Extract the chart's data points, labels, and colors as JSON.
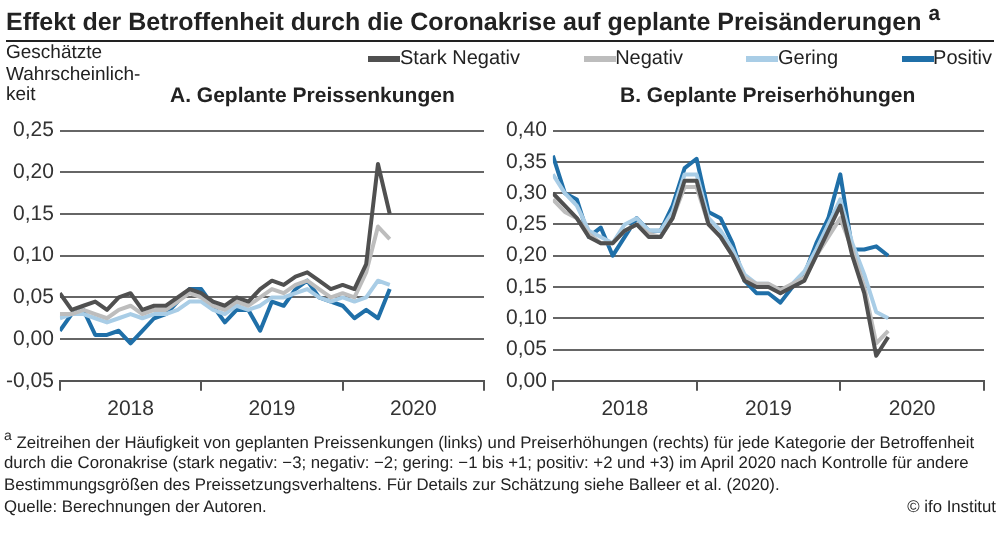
{
  "chart_data": [
    {
      "type": "line",
      "title": "Effekt der Betroffenheit durch die Coronakrise auf geplante Preisänderungen $^{a}$",
      "subtitle": "A. Geplante Preissenkungen",
      "ylabel": "Geschätzte Wahrscheinlich-keit",
      "annotations": [
        "$^{a}$ Zeitreihen der Häufigkeit von geplanten Preissenkungen (links) und Preiserhöhungen (rechts) für jede Kategorie der Betroffenheit durch die Coronakrise (stark negativ: −3; negativ: −2; gering: −1 bis +1; positiv: +2 und +3) im April 2020 nach Kontrolle für andere Bestimmungsgrößen des Preissetzungsverhaltens. Für Details zur Schätzung siehe Balleer et al. (2020).",
        "Quelle: Berechnungen der Autoren.",
        "© ifo Institut"
      ],
      "x": [
        "2018-01",
        "2018-02",
        "2018-03",
        "2018-04",
        "2018-05",
        "2018-06",
        "2018-07",
        "2018-08",
        "2018-09",
        "2018-10",
        "2018-11",
        "2018-12",
        "2019-01",
        "2019-02",
        "2019-03",
        "2019-04",
        "2019-05",
        "2019-06",
        "2019-07",
        "2019-08",
        "2019-09",
        "2019-10",
        "2019-11",
        "2019-12",
        "2020-01",
        "2020-02",
        "2020-03",
        "2020-04",
        "2020-05"
      ],
      "xlim": [
        "2018-01",
        "2021-01"
      ],
      "xticks": [
        {
          "value": "2018-01",
          "label": null
        },
        {
          "value": "2018-07",
          "label": "2018"
        },
        {
          "value": "2019-01",
          "label": null
        },
        {
          "value": "2019-07",
          "label": "2019"
        },
        {
          "value": "2020-01",
          "label": null
        },
        {
          "value": "2020-07",
          "label": "2020"
        },
        {
          "value": "2021-01",
          "label": null
        }
      ],
      "ylim": [
        -0.05,
        0.25
      ],
      "yticks": [
        {
          "value": -0.05,
          "label": "-0,05"
        },
        {
          "value": 0,
          "label": "0,00"
        },
        {
          "value": 0.05,
          "label": "0,05"
        },
        {
          "value": 0.1,
          "label": "0,10"
        },
        {
          "value": 0.15,
          "label": "0,15"
        },
        {
          "value": 0.2,
          "label": "0,20"
        },
        {
          "value": 0.25,
          "label": "0,25"
        }
      ],
      "grid": "y",
      "series": [
        {
          "color": "#505050",
          "values": [
            0.055,
            0.035,
            0.04,
            0.045,
            0.035,
            0.05,
            0.055,
            0.035,
            0.04,
            0.04,
            0.05,
            0.06,
            0.055,
            0.045,
            0.04,
            0.05,
            0.045,
            0.06,
            0.07,
            0.065,
            0.075,
            0.08,
            0.07,
            0.06,
            0.065,
            0.06,
            0.09,
            0.21,
            0.15
          ]
        },
        {
          "color": "#bdbdbd",
          "values": [
            0.03,
            0.03,
            0.035,
            0.03,
            0.025,
            0.035,
            0.04,
            0.03,
            0.035,
            0.035,
            0.045,
            0.055,
            0.05,
            0.04,
            0.035,
            0.045,
            0.04,
            0.05,
            0.06,
            0.055,
            0.065,
            0.07,
            0.06,
            0.05,
            0.055,
            0.05,
            0.08,
            0.135,
            0.12
          ]
        },
        {
          "color": "#a9cde6",
          "values": [
            0.025,
            0.03,
            0.03,
            0.025,
            0.02,
            0.025,
            0.03,
            0.025,
            0.03,
            0.03,
            0.035,
            0.045,
            0.045,
            0.035,
            0.03,
            0.04,
            0.035,
            0.04,
            0.05,
            0.05,
            0.055,
            0.06,
            0.05,
            0.045,
            0.05,
            0.045,
            0.05,
            0.07,
            0.065
          ]
        },
        {
          "color": "#1f6fa8",
          "values": [
            0.01,
            0.03,
            0.035,
            0.005,
            0.005,
            0.01,
            -0.005,
            0.01,
            0.025,
            0.03,
            0.045,
            0.06,
            0.06,
            0.04,
            0.02,
            0.035,
            0.035,
            0.01,
            0.045,
            0.04,
            0.06,
            0.07,
            0.05,
            0.045,
            0.04,
            0.025,
            0.035,
            0.025,
            0.06
          ]
        }
      ]
    },
    {
      "type": "line",
      "subtitle": "B. Geplante Preiserhöhungen",
      "legend": "top",
      "x": [
        "2018-01",
        "2018-02",
        "2018-03",
        "2018-04",
        "2018-05",
        "2018-06",
        "2018-07",
        "2018-08",
        "2018-09",
        "2018-10",
        "2018-11",
        "2018-12",
        "2019-01",
        "2019-02",
        "2019-03",
        "2019-04",
        "2019-05",
        "2019-06",
        "2019-07",
        "2019-08",
        "2019-09",
        "2019-10",
        "2019-11",
        "2019-12",
        "2020-01",
        "2020-02",
        "2020-03",
        "2020-04",
        "2020-05"
      ],
      "xlim": [
        "2018-01",
        "2021-01"
      ],
      "xticks": [
        {
          "value": "2018-01",
          "label": null
        },
        {
          "value": "2018-07",
          "label": "2018"
        },
        {
          "value": "2019-01",
          "label": null
        },
        {
          "value": "2019-07",
          "label": "2019"
        },
        {
          "value": "2020-01",
          "label": null
        },
        {
          "value": "2020-07",
          "label": "2020"
        },
        {
          "value": "2021-01",
          "label": null
        }
      ],
      "ylim": [
        0,
        0.4
      ],
      "yticks": [
        {
          "value": 0,
          "label": "0,00"
        },
        {
          "value": 0.05,
          "label": "0,05"
        },
        {
          "value": 0.1,
          "label": "0,10"
        },
        {
          "value": 0.15,
          "label": "0,15"
        },
        {
          "value": 0.2,
          "label": "0,20"
        },
        {
          "value": 0.25,
          "label": "0,25"
        },
        {
          "value": 0.3,
          "label": "0,30"
        },
        {
          "value": 0.35,
          "label": "0,35"
        },
        {
          "value": 0.4,
          "label": "0,40"
        }
      ],
      "grid": "y",
      "series": [
        {
          "name": "Stark Negativ",
          "color": "#505050",
          "values": [
            0.3,
            0.28,
            0.26,
            0.23,
            0.22,
            0.22,
            0.24,
            0.25,
            0.23,
            0.23,
            0.26,
            0.32,
            0.32,
            0.25,
            0.23,
            0.2,
            0.16,
            0.15,
            0.15,
            0.14,
            0.15,
            0.16,
            0.2,
            0.24,
            0.28,
            0.2,
            0.14,
            0.04,
            0.07
          ]
        },
        {
          "name": "Negativ",
          "color": "#bdbdbd",
          "values": [
            0.29,
            0.27,
            0.26,
            0.235,
            0.22,
            0.22,
            0.24,
            0.25,
            0.235,
            0.23,
            0.26,
            0.31,
            0.31,
            0.25,
            0.23,
            0.2,
            0.165,
            0.155,
            0.155,
            0.145,
            0.155,
            0.165,
            0.2,
            0.23,
            0.26,
            0.21,
            0.15,
            0.06,
            0.08
          ]
        },
        {
          "name": "Gering",
          "color": "#a9cde6",
          "values": [
            0.33,
            0.3,
            0.28,
            0.24,
            0.23,
            0.22,
            0.25,
            0.26,
            0.24,
            0.24,
            0.27,
            0.33,
            0.33,
            0.26,
            0.24,
            0.21,
            0.17,
            0.155,
            0.155,
            0.14,
            0.155,
            0.175,
            0.21,
            0.25,
            0.29,
            0.22,
            0.17,
            0.11,
            0.1
          ]
        },
        {
          "name": "Positiv",
          "color": "#1f6fa8",
          "values": [
            0.36,
            0.3,
            0.29,
            0.23,
            0.245,
            0.2,
            0.23,
            0.26,
            0.24,
            0.24,
            0.28,
            0.34,
            0.355,
            0.27,
            0.26,
            0.22,
            0.16,
            0.14,
            0.14,
            0.125,
            0.15,
            0.17,
            0.22,
            0.26,
            0.33,
            0.21,
            0.21,
            0.215,
            0.2
          ]
        }
      ]
    }
  ]
}
